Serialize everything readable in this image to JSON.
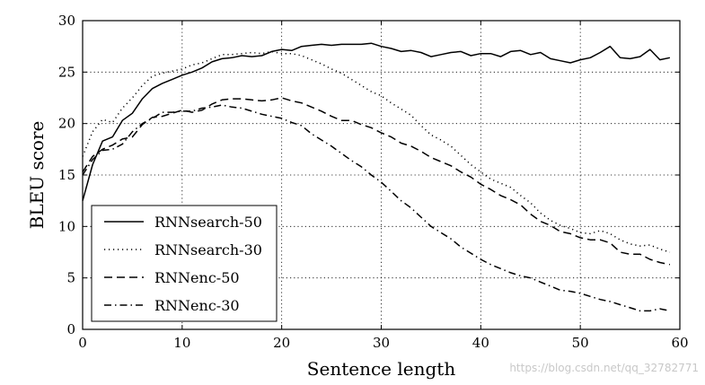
{
  "chart_data": {
    "type": "line",
    "xlabel": "Sentence length",
    "ylabel": "BLEU score",
    "xlim": [
      0,
      60
    ],
    "ylim": [
      0,
      30
    ],
    "xticks": [
      0,
      10,
      20,
      30,
      40,
      50,
      60
    ],
    "yticks": [
      0,
      5,
      10,
      15,
      20,
      25,
      30
    ],
    "grid": true,
    "legend_position": "bottom-left",
    "series": [
      {
        "name": "RNNsearch-50",
        "style": "solid",
        "x": [
          0,
          1,
          2,
          3,
          4,
          5,
          6,
          7,
          8,
          9,
          10,
          11,
          12,
          13,
          14,
          15,
          16,
          17,
          18,
          19,
          20,
          21,
          22,
          23,
          24,
          25,
          26,
          27,
          28,
          29,
          30,
          31,
          32,
          33,
          34,
          35,
          36,
          37,
          38,
          39,
          40,
          41,
          42,
          43,
          44,
          45,
          46,
          47,
          48,
          49,
          50,
          51,
          52,
          53,
          54,
          55,
          56,
          57,
          58,
          59
        ],
        "values": [
          12.5,
          16.0,
          18.3,
          18.7,
          20.3,
          21.0,
          22.4,
          23.4,
          23.9,
          24.3,
          24.7,
          25.0,
          25.4,
          26.0,
          26.3,
          26.4,
          26.6,
          26.5,
          26.6,
          27.0,
          27.2,
          27.1,
          27.5,
          27.6,
          27.7,
          27.6,
          27.7,
          27.7,
          27.7,
          27.8,
          27.5,
          27.3,
          27.0,
          27.1,
          26.9,
          26.5,
          26.7,
          26.9,
          27.0,
          26.6,
          26.8,
          26.8,
          26.5,
          27.0,
          27.1,
          26.7,
          26.9,
          26.3,
          26.1,
          25.9,
          26.2,
          26.4,
          26.9,
          27.5,
          26.4,
          26.3,
          26.5,
          27.2,
          26.2,
          26.4
        ]
      },
      {
        "name": "RNNsearch-30",
        "style": "dotted",
        "x": [
          0,
          1,
          2,
          3,
          4,
          5,
          6,
          7,
          8,
          9,
          10,
          11,
          12,
          13,
          14,
          15,
          16,
          17,
          18,
          19,
          20,
          21,
          22,
          23,
          24,
          25,
          26,
          27,
          28,
          29,
          30,
          31,
          32,
          33,
          34,
          35,
          36,
          37,
          38,
          39,
          40,
          41,
          42,
          43,
          44,
          45,
          46,
          47,
          48,
          49,
          50,
          51,
          52,
          53,
          54,
          55,
          56,
          57,
          58,
          59
        ],
        "values": [
          16.8,
          19.2,
          20.4,
          20.1,
          21.5,
          22.5,
          23.7,
          24.6,
          24.9,
          25.1,
          25.3,
          25.7,
          25.9,
          26.3,
          26.7,
          26.7,
          26.8,
          26.9,
          26.8,
          27.0,
          26.8,
          26.8,
          26.6,
          26.2,
          25.8,
          25.3,
          24.9,
          24.3,
          23.7,
          23.1,
          22.7,
          22.0,
          21.4,
          20.8,
          19.8,
          18.9,
          18.4,
          17.8,
          16.9,
          16.0,
          15.3,
          14.6,
          14.2,
          13.8,
          13.0,
          12.3,
          11.3,
          10.6,
          10.1,
          9.8,
          9.4,
          9.3,
          9.6,
          9.3,
          8.7,
          8.3,
          8.1,
          8.2,
          7.8,
          7.5
        ]
      },
      {
        "name": "RNNenc-50",
        "style": "dashed",
        "x": [
          0,
          1,
          2,
          3,
          4,
          5,
          6,
          7,
          8,
          9,
          10,
          11,
          12,
          13,
          14,
          15,
          16,
          17,
          18,
          19,
          20,
          21,
          22,
          23,
          24,
          25,
          26,
          27,
          28,
          29,
          30,
          31,
          32,
          33,
          34,
          35,
          36,
          37,
          38,
          39,
          40,
          41,
          42,
          43,
          44,
          45,
          46,
          47,
          48,
          49,
          50,
          51,
          52,
          53,
          54,
          55,
          56,
          57,
          58,
          59
        ],
        "values": [
          15.3,
          16.8,
          17.5,
          17.9,
          18.5,
          18.7,
          19.9,
          20.6,
          20.7,
          21.0,
          21.3,
          21.1,
          21.3,
          21.9,
          22.3,
          22.4,
          22.4,
          22.3,
          22.2,
          22.3,
          22.5,
          22.2,
          22.0,
          21.6,
          21.2,
          20.7,
          20.3,
          20.3,
          19.9,
          19.6,
          19.1,
          18.7,
          18.1,
          17.8,
          17.3,
          16.7,
          16.3,
          15.9,
          15.3,
          14.8,
          14.1,
          13.6,
          13.0,
          12.6,
          12.1,
          11.2,
          10.5,
          10.1,
          9.5,
          9.3,
          8.9,
          8.7,
          8.7,
          8.4,
          7.5,
          7.3,
          7.3,
          6.8,
          6.5,
          6.3
        ]
      },
      {
        "name": "RNNenc-30",
        "style": "dashdot",
        "x": [
          0,
          1,
          2,
          3,
          4,
          5,
          6,
          7,
          8,
          9,
          10,
          11,
          12,
          13,
          14,
          15,
          16,
          17,
          18,
          19,
          20,
          21,
          22,
          23,
          24,
          25,
          26,
          27,
          28,
          29,
          30,
          31,
          32,
          33,
          34,
          35,
          36,
          37,
          38,
          39,
          40,
          41,
          42,
          43,
          44,
          45,
          46,
          47,
          48,
          49,
          50,
          51,
          52,
          53,
          54,
          55,
          56,
          57,
          58,
          59
        ],
        "values": [
          15.0,
          16.5,
          17.4,
          17.5,
          18.0,
          19.2,
          20.0,
          20.5,
          21.1,
          21.1,
          21.2,
          21.2,
          21.5,
          21.6,
          21.8,
          21.6,
          21.5,
          21.2,
          20.9,
          20.7,
          20.5,
          20.1,
          19.8,
          19.0,
          18.4,
          17.8,
          17.1,
          16.4,
          15.8,
          15.0,
          14.3,
          13.4,
          12.5,
          11.8,
          10.9,
          10.0,
          9.4,
          8.8,
          8.0,
          7.4,
          6.8,
          6.3,
          5.9,
          5.5,
          5.2,
          5.0,
          4.6,
          4.2,
          3.8,
          3.7,
          3.5,
          3.2,
          2.9,
          2.7,
          2.4,
          2.1,
          1.8,
          1.8,
          2.0,
          1.8
        ]
      }
    ]
  },
  "watermark_text": "https://blog.csdn.net/qq_32782771"
}
